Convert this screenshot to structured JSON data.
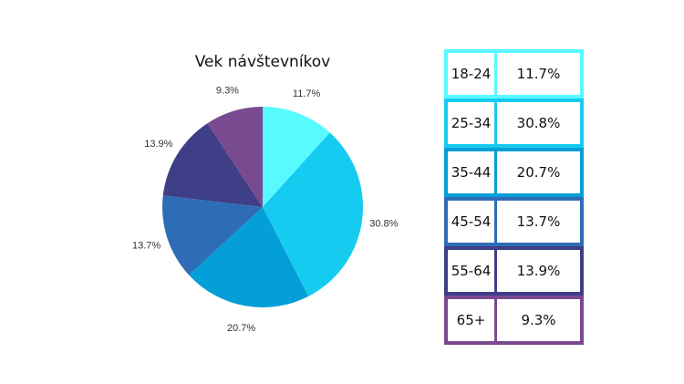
{
  "chart_data": {
    "type": "pie",
    "title": "Vek návštevníkov",
    "categories": [
      "18-24",
      "25-34",
      "35-44",
      "45-54",
      "55-64",
      "65+"
    ],
    "values": [
      11.7,
      30.8,
      20.7,
      13.7,
      13.9,
      9.3
    ],
    "labels": [
      "11.7%",
      "30.8%",
      "20.7%",
      "13.7%",
      "13.9%",
      "9.3%"
    ],
    "colors": [
      "#57FAFF",
      "#15CCF0",
      "#049ED8",
      "#2E6DB5",
      "#3E3F87",
      "#7A4A90"
    ],
    "start": "top",
    "direction": "clockwise"
  }
}
